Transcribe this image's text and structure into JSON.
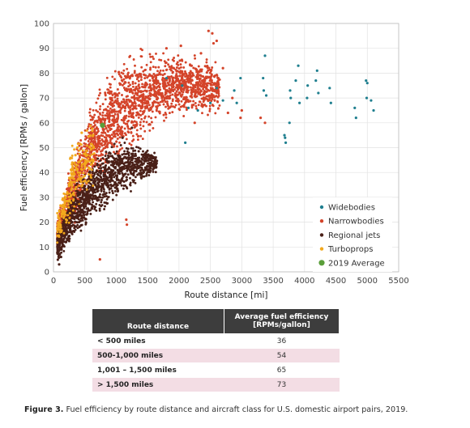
{
  "chart_data": {
    "type": "scatter",
    "xlabel": "Route distance [mi]",
    "ylabel": "Fuel efficiency [RPMs / gallon]",
    "xlim": [
      0,
      5500
    ],
    "ylim": [
      0,
      100
    ],
    "x_ticks": [
      0,
      500,
      1000,
      1500,
      2000,
      2500,
      3000,
      3500,
      4000,
      4500,
      5000,
      5500
    ],
    "y_ticks": [
      0,
      10,
      20,
      30,
      40,
      50,
      60,
      70,
      80,
      90,
      100
    ],
    "grid": true,
    "legend_position": "bottom-right",
    "series": [
      {
        "name": "Widebodies",
        "color": "#1f7f8f",
        "points": [
          [
            3370,
            87
          ],
          [
            3340,
            78
          ],
          [
            3390,
            71
          ],
          [
            3350,
            73
          ],
          [
            3680,
            55
          ],
          [
            3700,
            52
          ],
          [
            3690,
            54
          ],
          [
            3760,
            60
          ],
          [
            3780,
            70
          ],
          [
            3770,
            73
          ],
          [
            3900,
            83
          ],
          [
            3860,
            77
          ],
          [
            3920,
            68
          ],
          [
            4050,
            75
          ],
          [
            4040,
            70
          ],
          [
            4200,
            81
          ],
          [
            4180,
            77
          ],
          [
            4220,
            72
          ],
          [
            4400,
            74
          ],
          [
            4420,
            68
          ],
          [
            4800,
            66
          ],
          [
            4820,
            62
          ],
          [
            4980,
            77
          ],
          [
            5000,
            76
          ],
          [
            4990,
            70
          ],
          [
            5060,
            69
          ],
          [
            5100,
            65
          ],
          [
            2050,
            75
          ],
          [
            2150,
            66
          ],
          [
            2600,
            74
          ],
          [
            2700,
            69
          ],
          [
            2880,
            73
          ],
          [
            2980,
            78
          ],
          [
            2920,
            68
          ],
          [
            1800,
            78
          ],
          [
            2300,
            65
          ],
          [
            2500,
            68
          ],
          [
            2100,
            52
          ]
        ]
      },
      {
        "name": "Narrowbodies",
        "color": "#d4442a",
        "points": [
          [
            2530,
            96
          ],
          [
            2470,
            97
          ],
          [
            2600,
            93
          ],
          [
            2350,
            88
          ],
          [
            2200,
            83
          ],
          [
            3000,
            65
          ],
          [
            2980,
            62
          ],
          [
            3300,
            62
          ],
          [
            3370,
            60
          ],
          [
            1160,
            21
          ],
          [
            1170,
            19
          ],
          [
            740,
            5
          ],
          [
            2440,
            78
          ],
          [
            2700,
            82
          ],
          [
            2850,
            70
          ],
          [
            2780,
            64
          ],
          [
            2550,
            92
          ],
          [
            2250,
            60
          ],
          [
            2030,
            91
          ],
          [
            1800,
            90
          ]
        ]
      },
      {
        "name": "Regional jets",
        "color": "#4a2018",
        "points": [
          [
            90,
            3
          ],
          [
            120,
            6
          ],
          [
            200,
            12
          ],
          [
            300,
            20
          ],
          [
            400,
            28
          ],
          [
            500,
            33
          ],
          [
            600,
            37
          ],
          [
            800,
            40
          ],
          [
            1000,
            44
          ],
          [
            1200,
            46
          ],
          [
            1100,
            54
          ],
          [
            1250,
            58
          ]
        ]
      },
      {
        "name": "Turboprops",
        "color": "#f2a81d",
        "points": [
          [
            150,
            24
          ],
          [
            220,
            32
          ],
          [
            300,
            44
          ],
          [
            380,
            50
          ],
          [
            450,
            56
          ],
          [
            280,
            38
          ],
          [
            350,
            47
          ],
          [
            180,
            28
          ]
        ]
      },
      {
        "name": "2019 Average",
        "color": "#5a9e3a",
        "points": [
          [
            780,
            59
          ]
        ]
      }
    ],
    "clouds": [
      {
        "series": "Narrowbodies",
        "color": "#d4442a",
        "count": 2200,
        "xmin": 60,
        "xmax": 2650,
        "ymax_curve": [
          [
            0,
            14
          ],
          [
            300,
            44
          ],
          [
            600,
            64
          ],
          [
            900,
            78
          ],
          [
            1200,
            85
          ],
          [
            1600,
            87
          ],
          [
            2000,
            86
          ],
          [
            2600,
            84
          ]
        ],
        "ymin_curve": [
          [
            0,
            8
          ],
          [
            300,
            20
          ],
          [
            600,
            34
          ],
          [
            900,
            44
          ],
          [
            1200,
            50
          ],
          [
            1600,
            60
          ],
          [
            2000,
            64
          ],
          [
            2600,
            66
          ]
        ]
      },
      {
        "series": "Regional jets",
        "color": "#4a2018",
        "count": 1300,
        "xmin": 60,
        "xmax": 1650,
        "ymax_curve": [
          [
            0,
            12
          ],
          [
            300,
            33
          ],
          [
            600,
            43
          ],
          [
            900,
            50
          ],
          [
            1200,
            52
          ],
          [
            1650,
            48
          ]
        ],
        "ymin_curve": [
          [
            0,
            2
          ],
          [
            300,
            14
          ],
          [
            600,
            22
          ],
          [
            900,
            28
          ],
          [
            1200,
            34
          ],
          [
            1650,
            40
          ]
        ]
      },
      {
        "series": "Turboprops",
        "color": "#f2a81d",
        "count": 260,
        "xmin": 60,
        "xmax": 650,
        "ymax_curve": [
          [
            0,
            16
          ],
          [
            300,
            50
          ],
          [
            650,
            60
          ]
        ],
        "ymin_curve": [
          [
            0,
            8
          ],
          [
            300,
            22
          ],
          [
            650,
            36
          ]
        ]
      }
    ]
  },
  "table": {
    "headers": [
      "Route distance",
      "Average fuel efficiency [RPMs/gallon]"
    ],
    "rows": [
      {
        "distance": "< 500 miles",
        "efficiency": "36"
      },
      {
        "distance": "500-1,000 miles",
        "efficiency": "54"
      },
      {
        "distance": "1,001 – 1,500 miles",
        "efficiency": "65"
      },
      {
        "distance": "> 1,500 miles",
        "efficiency": "73"
      }
    ]
  },
  "caption": {
    "label": "Figure 3.",
    "text": " Fuel efficiency by route distance and aircraft class for U.S. domestic airport pairs, 2019."
  }
}
